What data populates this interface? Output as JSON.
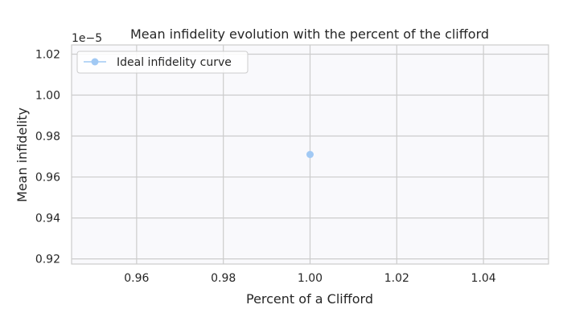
{
  "chart_data": {
    "type": "line",
    "title": "Mean infidelity evolution with the percent of the clifford",
    "xlabel": "Percent of a Clifford",
    "ylabel": "Mean infidelity",
    "offset_label": "1e−5",
    "xlim": [
      0.945,
      1.055
    ],
    "ylim": [
      0.9175,
      1.0245
    ],
    "x_ticks": [
      0.96,
      0.98,
      1.0,
      1.02,
      1.04
    ],
    "x_tick_labels": [
      "0.96",
      "0.98",
      "1.00",
      "1.02",
      "1.04"
    ],
    "y_ticks": [
      0.92,
      0.94,
      0.96,
      0.98,
      1.0,
      1.02
    ],
    "y_tick_labels": [
      "0.92",
      "0.94",
      "0.96",
      "0.98",
      "1.00",
      "1.02"
    ],
    "grid": true,
    "legend_position": "top-left",
    "series": [
      {
        "name": "Ideal infidelity curve",
        "color": "#a1c9f4",
        "marker": "circle",
        "x": [
          1.0
        ],
        "y": [
          0.971
        ]
      }
    ],
    "colors": {
      "plot_background": "#f9f9fc",
      "grid": "#cccccc",
      "frame": "#cccccc"
    }
  }
}
